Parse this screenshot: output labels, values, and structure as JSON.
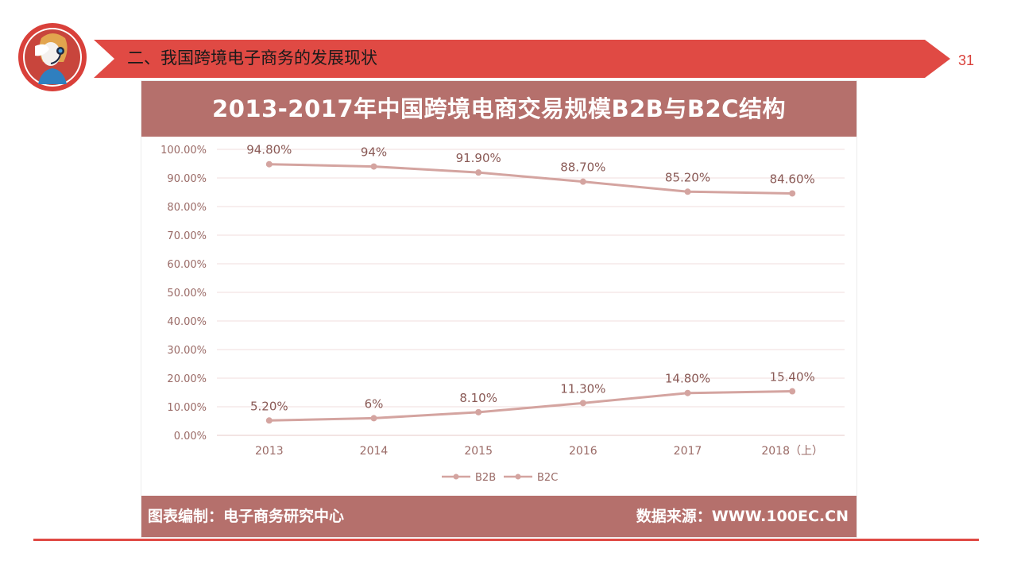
{
  "slide": {
    "title": "二、我国跨境电子商务的发展现状",
    "page_number": "31",
    "accent_color": "#e04a44",
    "avatar_icon": "customer-service-headset-icon"
  },
  "chart": {
    "header_color": "#b5706c",
    "line_color": "#d4a4a0",
    "footer_left": "图表编制：电子商务研究中心",
    "footer_right": "数据来源：WWW.100EC.CN"
  },
  "chart_data": {
    "type": "line",
    "title": "2013-2017年中国跨境电商交易规模B2B与B2C结构",
    "categories": [
      "2013",
      "2014",
      "2015",
      "2016",
      "2017",
      "2018（上）"
    ],
    "yticks": [
      "0.00%",
      "10.00%",
      "20.00%",
      "30.00%",
      "40.00%",
      "50.00%",
      "60.00%",
      "70.00%",
      "80.00%",
      "90.00%",
      "100.00%"
    ],
    "ylim": [
      0,
      100
    ],
    "grid": true,
    "legend_position": "bottom",
    "series": [
      {
        "name": "B2B",
        "values": [
          94.8,
          94,
          91.9,
          88.7,
          85.2,
          84.6
        ],
        "labels": [
          "94.80%",
          "94%",
          "91.90%",
          "88.70%",
          "85.20%",
          "84.60%"
        ]
      },
      {
        "name": "B2C",
        "values": [
          5.2,
          6,
          8.1,
          11.3,
          14.8,
          15.4
        ],
        "labels": [
          "5.20%",
          "6%",
          "8.10%",
          "11.30%",
          "14.80%",
          "15.40%"
        ]
      }
    ]
  }
}
